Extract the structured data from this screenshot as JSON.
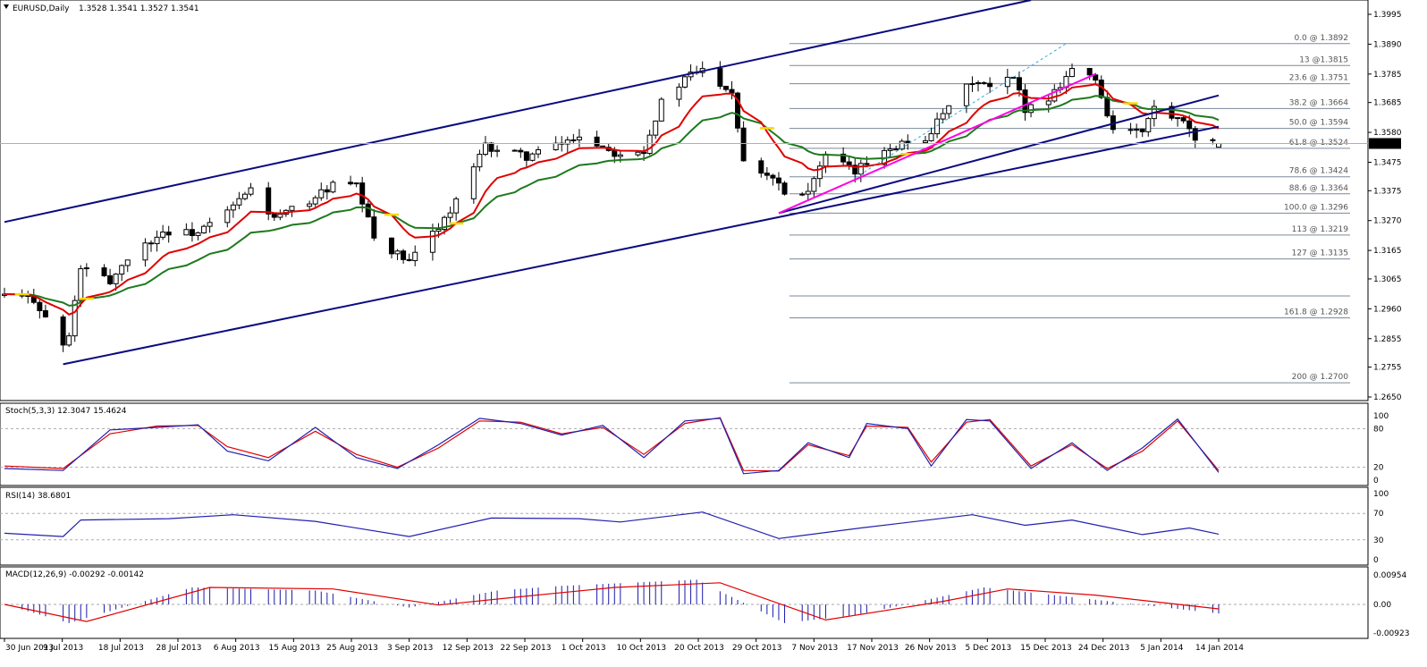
{
  "colors": {
    "background": "#ffffff",
    "border": "#000000",
    "channel": "#0a0a80",
    "ema_fast": "#e00000",
    "ema_slow": "#1d7a1d",
    "ema_accent": "#f5d800",
    "pink_trend": "#ff00e6",
    "fib_line": "#7a8a9a",
    "stoch_k": "#2020b0",
    "stoch_d": "#e00000",
    "rsi": "#2020b0",
    "macd_hist": "#1a1aaa",
    "macd_signal": "#e00000"
  },
  "header": {
    "symbol_icon": "triangle-down-icon",
    "title": "EURUSD,Daily",
    "ohlc": "1.3528 1.3541 1.3527 1.3541"
  },
  "price_axis": {
    "ticks": [
      "1.3995",
      "1.3890",
      "1.3785",
      "1.3685",
      "1.3580",
      "1.3475",
      "1.3375",
      "1.3270",
      "1.3165",
      "1.3065",
      "1.2960",
      "1.2855",
      "1.2755",
      "1.2650"
    ],
    "current_price": "1.3541"
  },
  "fib_levels": [
    {
      "label": "0.0 @ 1.3892",
      "price": 1.3892
    },
    {
      "label": "13 @1.3815",
      "price": 1.3815
    },
    {
      "label": "23.6 @ 1.3751",
      "price": 1.3751
    },
    {
      "label": "38.2 @ 1.3664",
      "price": 1.3664
    },
    {
      "label": "50.0 @ 1.3594",
      "price": 1.3594
    },
    {
      "label": "61.8 @ 1.3524",
      "price": 1.3524
    },
    {
      "label": "78.6 @ 1.3424",
      "price": 1.3424
    },
    {
      "label": "88.6 @ 1.3364",
      "price": 1.3364
    },
    {
      "label": "100.0 @ 1.3296",
      "price": 1.3296
    },
    {
      "label": "113 @ 1.3219",
      "price": 1.3219
    },
    {
      "label": "127 @ 1.3135",
      "price": 1.3135
    },
    {
      "label": "",
      "price": 1.3005
    },
    {
      "label": "161.8 @ 1.2928",
      "price": 1.2928
    },
    {
      "label": "200 @ 1.2700",
      "price": 1.27
    }
  ],
  "x_axis": {
    "labels": [
      "30 Jun 2013",
      "9 Jul 2013",
      "18 Jul 2013",
      "28 Jul 2013",
      "6 Aug 2013",
      "15 Aug 2013",
      "25 Aug 2013",
      "3 Sep 2013",
      "12 Sep 2013",
      "22 Sep 2013",
      "1 Oct 2013",
      "10 Oct 2013",
      "20 Oct 2013",
      "29 Oct 2013",
      "7 Nov 2013",
      "17 Nov 2013",
      "26 Nov 2013",
      "5 Dec 2013",
      "15 Dec 2013",
      "24 Dec 2013",
      "5 Jan 2014",
      "14 Jan 2014"
    ]
  },
  "stoch": {
    "title": "Stoch(5,3,3) 12.3047 15.4624",
    "ticks": [
      "100",
      "80",
      "20",
      "0"
    ]
  },
  "rsi": {
    "title": "RSI(14) 38.6801",
    "ticks": [
      "100",
      "70",
      "30",
      "0"
    ]
  },
  "macd": {
    "title": "MACD(12,26,9) -0.00292 -0.00142",
    "ticks": [
      "0.00954",
      "0.00",
      "-0.00923"
    ]
  },
  "chart_data": [
    {
      "type": "candlestick",
      "title": "EURUSD,Daily",
      "ylim": [
        1.265,
        1.3995
      ],
      "x_start": "2013-06-28",
      "x_end": "2014-01-21",
      "last": {
        "open": 1.3528,
        "high": 1.3541,
        "low": 1.3527,
        "close": 1.3541
      },
      "close_path": [
        [
          "2013-06-28",
          1.3007
        ],
        [
          "2013-07-03",
          1.2995
        ],
        [
          "2013-07-08",
          1.283
        ],
        [
          "2013-07-09",
          1.2862
        ],
        [
          "2013-07-11",
          1.3105
        ],
        [
          "2013-07-16",
          1.3055
        ],
        [
          "2013-07-19",
          1.314
        ],
        [
          "2013-07-25",
          1.323
        ],
        [
          "2013-07-31",
          1.3226
        ],
        [
          "2013-08-05",
          1.33
        ],
        [
          "2013-08-09",
          1.338
        ],
        [
          "2013-08-13",
          1.3275
        ],
        [
          "2013-08-19",
          1.334
        ],
        [
          "2013-08-23",
          1.3395
        ],
        [
          "2013-08-27",
          1.339
        ],
        [
          "2013-08-30",
          1.321
        ],
        [
          "2013-09-05",
          1.312
        ],
        [
          "2013-09-09",
          1.323
        ],
        [
          "2013-09-12",
          1.33
        ],
        [
          "2013-09-18",
          1.353
        ],
        [
          "2013-09-25",
          1.3495
        ],
        [
          "2013-10-01",
          1.354
        ],
        [
          "2013-10-04",
          1.357
        ],
        [
          "2013-10-10",
          1.351
        ],
        [
          "2013-10-15",
          1.352
        ],
        [
          "2013-10-18",
          1.3685
        ],
        [
          "2013-10-23",
          1.3785
        ],
        [
          "2013-10-25",
          1.38
        ],
        [
          "2013-10-30",
          1.3725
        ],
        [
          "2013-11-01",
          1.3485
        ],
        [
          "2013-11-07",
          1.341
        ],
        [
          "2013-11-08",
          1.3365
        ],
        [
          "2013-11-12",
          1.338
        ],
        [
          "2013-11-15",
          1.3495
        ],
        [
          "2013-11-20",
          1.344
        ],
        [
          "2013-11-25",
          1.3525
        ],
        [
          "2013-12-02",
          1.356
        ],
        [
          "2013-12-06",
          1.3665
        ],
        [
          "2013-12-10",
          1.376
        ],
        [
          "2013-12-13",
          1.3735
        ],
        [
          "2013-12-17",
          1.377
        ],
        [
          "2013-12-19",
          1.3665
        ],
        [
          "2013-12-23",
          1.37
        ],
        [
          "2013-12-27",
          1.3805
        ],
        [
          "2013-12-31",
          1.3765
        ],
        [
          "2014-01-03",
          1.359
        ],
        [
          "2014-01-08",
          1.358
        ],
        [
          "2014-01-10",
          1.3665
        ],
        [
          "2014-01-14",
          1.362
        ],
        [
          "2014-01-16",
          1.3595
        ],
        [
          "2014-01-17",
          1.354
        ],
        [
          "2014-01-21",
          1.3541
        ]
      ],
      "channel_upper": [
        [
          "2013-06-28",
          1.3265
        ],
        [
          "2013-12-20",
          1.4045
        ]
      ],
      "channel_lower": [
        [
          "2013-07-08",
          1.2765
        ],
        [
          "2014-01-21",
          1.36
        ]
      ],
      "channel_mid": [
        [
          "2013-11-07",
          1.3296
        ],
        [
          "2014-01-21",
          1.371
        ]
      ],
      "pink_trendline": [
        [
          "2013-11-07",
          1.3296
        ],
        [
          "2013-12-31",
          1.3785
        ]
      ]
    },
    {
      "type": "line",
      "title": "Stoch(5,3,3) 12.3047 15.4624",
      "ylim": [
        0,
        100
      ],
      "series": [
        {
          "name": "%K",
          "x": [
            "2013-06-28",
            "2013-07-08",
            "2013-07-16",
            "2013-07-24",
            "2013-07-31",
            "2013-08-05",
            "2013-08-12",
            "2013-08-20",
            "2013-08-27",
            "2013-09-03",
            "2013-09-10",
            "2013-09-17",
            "2013-09-24",
            "2013-10-01",
            "2013-10-08",
            "2013-10-15",
            "2013-10-22",
            "2013-10-28",
            "2013-11-01",
            "2013-11-07",
            "2013-11-12",
            "2013-11-19",
            "2013-11-22",
            "2013-11-29",
            "2013-12-03",
            "2013-12-09",
            "2013-12-13",
            "2013-12-20",
            "2013-12-27",
            "2014-01-02",
            "2014-01-08",
            "2014-01-14",
            "2014-01-21"
          ],
          "values": [
            18,
            15,
            78,
            82,
            86,
            45,
            30,
            82,
            35,
            18,
            55,
            96,
            88,
            70,
            85,
            35,
            92,
            96,
            10,
            15,
            58,
            35,
            88,
            80,
            22,
            94,
            92,
            18,
            58,
            15,
            50,
            95,
            12
          ]
        },
        {
          "name": "%D",
          "x": [
            "2013-06-28",
            "2013-07-08",
            "2013-07-16",
            "2013-07-24",
            "2013-07-31",
            "2013-08-05",
            "2013-08-12",
            "2013-08-20",
            "2013-08-27",
            "2013-09-03",
            "2013-09-10",
            "2013-09-17",
            "2013-09-24",
            "2013-10-01",
            "2013-10-08",
            "2013-10-15",
            "2013-10-22",
            "2013-10-28",
            "2013-11-01",
            "2013-11-07",
            "2013-11-12",
            "2013-11-19",
            "2013-11-22",
            "2013-11-29",
            "2013-12-03",
            "2013-12-09",
            "2013-12-13",
            "2013-12-20",
            "2013-12-27",
            "2014-01-02",
            "2014-01-08",
            "2014-01-14",
            "2014-01-21"
          ],
          "values": [
            22,
            18,
            72,
            84,
            85,
            52,
            35,
            76,
            40,
            20,
            50,
            92,
            90,
            72,
            82,
            40,
            88,
            97,
            15,
            14,
            55,
            38,
            84,
            82,
            28,
            90,
            94,
            22,
            55,
            18,
            45,
            92,
            15
          ]
        }
      ]
    },
    {
      "type": "line",
      "title": "RSI(14) 38.6801",
      "ylim": [
        0,
        100
      ],
      "series": [
        {
          "name": "RSI(14)",
          "x": [
            "2013-06-28",
            "2013-07-08",
            "2013-07-11",
            "2013-07-26",
            "2013-08-06",
            "2013-08-20",
            "2013-09-05",
            "2013-09-19",
            "2013-10-04",
            "2013-10-11",
            "2013-10-25",
            "2013-11-07",
            "2013-11-21",
            "2013-12-10",
            "2013-12-19",
            "2013-12-27",
            "2014-01-08",
            "2014-01-16",
            "2014-01-21"
          ],
          "values": [
            40,
            35,
            60,
            62,
            68,
            58,
            35,
            63,
            62,
            57,
            72,
            32,
            48,
            68,
            52,
            60,
            38,
            48,
            38.68
          ]
        }
      ]
    },
    {
      "type": "bar",
      "title": "MACD(12,26,9) -0.00292 -0.00142",
      "ylim": [
        -0.00923,
        0.00954
      ],
      "series": [
        {
          "name": "MACD",
          "x": [
            "2013-06-28",
            "2013-07-09",
            "2013-07-30",
            "2013-08-20",
            "2013-09-05",
            "2013-09-20",
            "2013-10-01",
            "2013-10-24",
            "2013-11-08",
            "2013-11-20",
            "2013-12-12",
            "2013-12-24",
            "2014-01-21"
          ],
          "values": [
            0.0,
            -0.006,
            0.0055,
            0.0045,
            -0.001,
            0.0045,
            0.006,
            0.008,
            -0.006,
            -0.0035,
            0.0055,
            0.003,
            -0.00292
          ]
        },
        {
          "name": "Signal",
          "x": [
            "2013-06-28",
            "2013-07-12",
            "2013-08-02",
            "2013-08-23",
            "2013-09-10",
            "2013-09-24",
            "2013-10-10",
            "2013-10-28",
            "2013-11-15",
            "2013-12-05",
            "2013-12-16",
            "2013-12-31",
            "2014-01-21"
          ],
          "values": [
            0.0,
            -0.0055,
            0.0055,
            0.005,
            -0.0002,
            0.0025,
            0.0055,
            0.007,
            -0.005,
            0.001,
            0.005,
            0.003,
            -0.00142
          ]
        }
      ]
    }
  ]
}
